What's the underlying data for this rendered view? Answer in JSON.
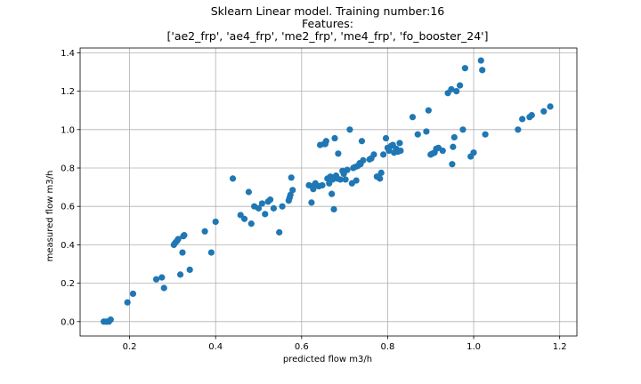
{
  "chart_data": {
    "type": "scatter",
    "title_lines": [
      "Sklearn Linear model. Training number:16",
      "Features:",
      "['ae2_frp', 'ae4_frp', 'me2_frp', 'me4_frp', 'fo_booster_24']"
    ],
    "xlabel": "predicted flow m3/h",
    "ylabel": "measured flow m3/h",
    "xlim": [
      0.085,
      1.24
    ],
    "ylim": [
      -0.075,
      1.425
    ],
    "xticks": [
      0.2,
      0.4,
      0.6,
      0.8,
      1.0,
      1.2
    ],
    "xtick_labels": [
      "0.2",
      "0.4",
      "0.6",
      "0.8",
      "1.0",
      "1.2"
    ],
    "yticks": [
      0.0,
      0.2,
      0.4,
      0.6,
      0.8,
      1.0,
      1.2,
      1.4
    ],
    "ytick_labels": [
      "0.0",
      "0.2",
      "0.4",
      "0.6",
      "0.8",
      "1.0",
      "1.2",
      "1.4"
    ],
    "grid": true,
    "marker_color": "#1f77b4",
    "points": [
      [
        0.14,
        0.0
      ],
      [
        0.145,
        0.0
      ],
      [
        0.148,
        0.0
      ],
      [
        0.152,
        0.0
      ],
      [
        0.156,
        0.01
      ],
      [
        0.195,
        0.1
      ],
      [
        0.208,
        0.145
      ],
      [
        0.262,
        0.22
      ],
      [
        0.275,
        0.23
      ],
      [
        0.28,
        0.175
      ],
      [
        0.303,
        0.4
      ],
      [
        0.306,
        0.41
      ],
      [
        0.31,
        0.42
      ],
      [
        0.313,
        0.43
      ],
      [
        0.318,
        0.245
      ],
      [
        0.325,
        0.445
      ],
      [
        0.327,
        0.45
      ],
      [
        0.323,
        0.36
      ],
      [
        0.34,
        0.27
      ],
      [
        0.375,
        0.47
      ],
      [
        0.39,
        0.36
      ],
      [
        0.4,
        0.52
      ],
      [
        0.44,
        0.745
      ],
      [
        0.458,
        0.555
      ],
      [
        0.467,
        0.535
      ],
      [
        0.477,
        0.675
      ],
      [
        0.483,
        0.51
      ],
      [
        0.49,
        0.6
      ],
      [
        0.5,
        0.59
      ],
      [
        0.508,
        0.615
      ],
      [
        0.515,
        0.56
      ],
      [
        0.522,
        0.625
      ],
      [
        0.527,
        0.635
      ],
      [
        0.535,
        0.59
      ],
      [
        0.548,
        0.465
      ],
      [
        0.555,
        0.6
      ],
      [
        0.57,
        0.63
      ],
      [
        0.572,
        0.645
      ],
      [
        0.574,
        0.66
      ],
      [
        0.576,
        0.75
      ],
      [
        0.579,
        0.685
      ],
      [
        0.617,
        0.71
      ],
      [
        0.623,
        0.62
      ],
      [
        0.627,
        0.69
      ],
      [
        0.629,
        0.71
      ],
      [
        0.632,
        0.72
      ],
      [
        0.64,
        0.705
      ],
      [
        0.643,
        0.92
      ],
      [
        0.648,
        0.71
      ],
      [
        0.652,
        0.925
      ],
      [
        0.655,
        0.925
      ],
      [
        0.657,
        0.94
      ],
      [
        0.66,
        0.745
      ],
      [
        0.664,
        0.72
      ],
      [
        0.667,
        0.755
      ],
      [
        0.67,
        0.665
      ],
      [
        0.672,
        0.74
      ],
      [
        0.675,
        0.585
      ],
      [
        0.677,
        0.955
      ],
      [
        0.68,
        0.76
      ],
      [
        0.683,
        0.745
      ],
      [
        0.685,
        0.875
      ],
      [
        0.69,
        0.74
      ],
      [
        0.695,
        0.785
      ],
      [
        0.698,
        0.77
      ],
      [
        0.702,
        0.74
      ],
      [
        0.706,
        0.79
      ],
      [
        0.712,
        1.0
      ],
      [
        0.717,
        0.72
      ],
      [
        0.72,
        0.8
      ],
      [
        0.724,
        0.805
      ],
      [
        0.727,
        0.735
      ],
      [
        0.73,
        0.81
      ],
      [
        0.735,
        0.825
      ],
      [
        0.737,
        0.82
      ],
      [
        0.74,
        0.94
      ],
      [
        0.743,
        0.84
      ],
      [
        0.758,
        0.845
      ],
      [
        0.762,
        0.85
      ],
      [
        0.768,
        0.87
      ],
      [
        0.775,
        0.755
      ],
      [
        0.782,
        0.745
      ],
      [
        0.785,
        0.775
      ],
      [
        0.79,
        0.87
      ],
      [
        0.796,
        0.955
      ],
      [
        0.8,
        0.905
      ],
      [
        0.803,
        0.89
      ],
      [
        0.808,
        0.915
      ],
      [
        0.812,
        0.92
      ],
      [
        0.815,
        0.88
      ],
      [
        0.82,
        0.9
      ],
      [
        0.824,
        0.885
      ],
      [
        0.828,
        0.93
      ],
      [
        0.83,
        0.89
      ],
      [
        0.858,
        1.065
      ],
      [
        0.87,
        0.975
      ],
      [
        0.89,
        0.99
      ],
      [
        0.895,
        1.1
      ],
      [
        0.9,
        0.87
      ],
      [
        0.904,
        0.875
      ],
      [
        0.909,
        0.88
      ],
      [
        0.913,
        0.9
      ],
      [
        0.918,
        0.905
      ],
      [
        0.928,
        0.89
      ],
      [
        0.94,
        1.19
      ],
      [
        0.948,
        1.21
      ],
      [
        0.95,
        0.82
      ],
      [
        0.952,
        0.91
      ],
      [
        0.955,
        0.96
      ],
      [
        0.96,
        1.2
      ],
      [
        0.968,
        1.23
      ],
      [
        0.975,
        1.0
      ],
      [
        0.98,
        1.32
      ],
      [
        0.993,
        0.86
      ],
      [
        1.0,
        0.88
      ],
      [
        1.017,
        1.36
      ],
      [
        1.02,
        1.31
      ],
      [
        1.027,
        0.975
      ],
      [
        1.103,
        1.0
      ],
      [
        1.113,
        1.055
      ],
      [
        1.13,
        1.065
      ],
      [
        1.135,
        1.075
      ],
      [
        1.163,
        1.095
      ],
      [
        1.178,
        1.12
      ]
    ]
  }
}
